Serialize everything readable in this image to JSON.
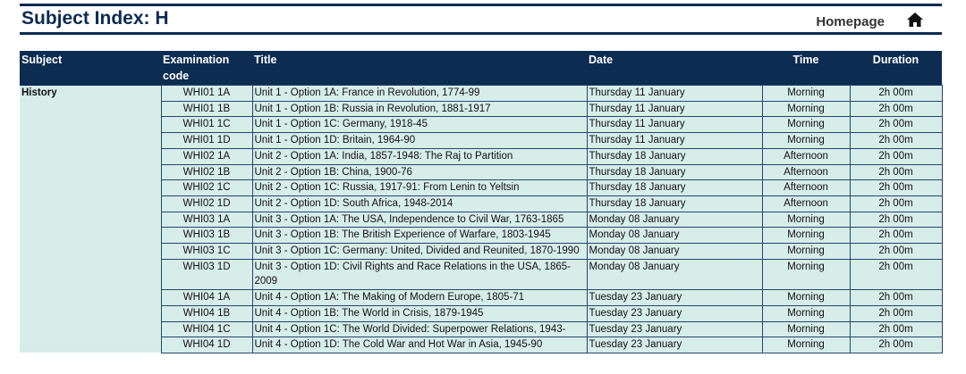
{
  "header": {
    "title": "Subject Index: H",
    "link": "Homepage"
  },
  "table": {
    "columns": [
      "Subject",
      "Examination code",
      "Title",
      "Date",
      "Time",
      "Duration"
    ],
    "groups": [
      {
        "subject": "History",
        "rows": [
          [
            "WHI01 1A",
            "Unit 1 - Option 1A: France in Revolution, 1774-99",
            "Thursday 11 January",
            "Morning",
            "2h 00m"
          ],
          [
            "WHI01 1B",
            "Unit 1 - Option 1B: Russia in Revolution, 1881-1917",
            "Thursday 11 January",
            "Morning",
            "2h 00m"
          ],
          [
            "WHI01 1C",
            "Unit 1 - Option 1C: Germany, 1918-45",
            "Thursday 11 January",
            "Morning",
            "2h 00m"
          ],
          [
            "WHI01 1D",
            "Unit 1 - Option 1D: Britain, 1964-90",
            "Thursday 11 January",
            "Morning",
            "2h 00m"
          ],
          [
            "WHI02 1A",
            "Unit 2 - Option 1A: India, 1857-1948: The Raj to Partition",
            "Thursday 18 January",
            "Afternoon",
            "2h 00m"
          ],
          [
            "WHI02 1B",
            "Unit 2 - Option 1B: China, 1900-76",
            "Thursday 18 January",
            "Afternoon",
            "2h 00m"
          ],
          [
            "WHI02 1C",
            "Unit 2 - Option 1C: Russia, 1917-91: From Lenin to Yeltsin",
            "Thursday 18 January",
            "Afternoon",
            "2h 00m"
          ],
          [
            "WHI02 1D",
            "Unit 2 - Option 1D: South Africa, 1948-2014",
            "Thursday 18 January",
            "Afternoon",
            "2h 00m"
          ],
          [
            "WHI03 1A",
            "Unit 3 - Option 1A: The USA, Independence to Civil War, 1763-1865",
            "Monday 08 January",
            "Morning",
            "2h 00m"
          ],
          [
            "WHI03 1B",
            "Unit 3 - Option 1B: The British Experience of Warfare, 1803-1945",
            "Monday 08 January",
            "Morning",
            "2h 00m"
          ],
          [
            "WHI03 1C",
            "Unit 3 - Option 1C: Germany: United, Divided and Reunited, 1870-1990",
            "Monday 08 January",
            "Morning",
            "2h 00m"
          ],
          [
            "WHI03 1D",
            "Unit 3 - Option 1D: Civil Rights and Race Relations in the USA, 1865-2009",
            "Monday 08 January",
            "Morning",
            "2h 00m"
          ],
          [
            "WHI04 1A",
            "Unit 4 - Option 1A: The Making of Modern Europe, 1805-71",
            "Tuesday 23 January",
            "Morning",
            "2h 00m"
          ],
          [
            "WHI04 1B",
            "Unit 4 - Option 1B: The World in Crisis, 1879-1945",
            "Tuesday 23 January",
            "Morning",
            "2h 00m"
          ],
          [
            "WHI04 1C",
            "Unit 4 - Option 1C: The World Divided: Superpower Relations, 1943-",
            "Tuesday 23 January",
            "Morning",
            "2h 00m"
          ],
          [
            "WHI04 1D",
            "Unit 4 - Option 1D: The Cold War and Hot War in Asia, 1945-90",
            "Tuesday 23 January",
            "Morning",
            "2h 00m"
          ]
        ]
      }
    ]
  }
}
